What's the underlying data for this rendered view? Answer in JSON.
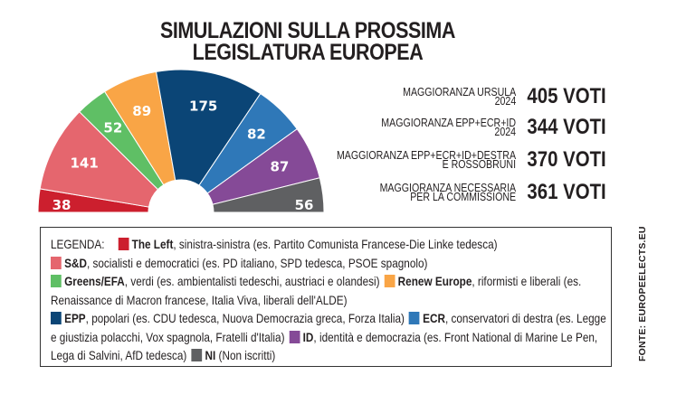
{
  "title_line1": "SIMULAZIONI SULLA PROSSIMA",
  "title_line2": "LEGISLATURA EUROPEA",
  "chart_data": {
    "type": "pie",
    "subtype": "hemicycle",
    "title": "SIMULAZIONI SULLA PROSSIMA LEGISLATURA EUROPEA",
    "categories": [
      "The Left",
      "S&D",
      "Greens/EFA",
      "Renew Europe",
      "EPP",
      "ECR",
      "ID",
      "NI"
    ],
    "values": [
      38,
      141,
      52,
      89,
      175,
      82,
      87,
      56
    ],
    "colors": [
      "#cc1f2e",
      "#e5666e",
      "#5fbf65",
      "#f9a546",
      "#0b4576",
      "#2f78b8",
      "#854a97",
      "#5f6062"
    ]
  },
  "majorities": [
    {
      "label1": "MAGGIORANZA URSULA",
      "label2": "2024",
      "value": "405 VOTI"
    },
    {
      "label1": "MAGGIORANZA EPP+ECR+ID",
      "label2": "2024",
      "value": "344 VOTI"
    },
    {
      "label1": "MAGGIORANZA EPP+ECR+ID+DESTRA",
      "label2": "E ROSSOBRUNI",
      "value": "370 VOTI"
    },
    {
      "label1": "MAGGIORANZA NECESSARIA",
      "label2": "PER LA COMMISSIONE",
      "value": "361 VOTI"
    }
  ],
  "legend": {
    "heading": "LEGENDA:",
    "items": [
      {
        "name": "The Left",
        "desc": ", sinistra-sinistra (es. Partito Comunista Francese-Die Linke tedesca)"
      },
      {
        "name": "S&D",
        "desc": ", socialisti e democratici (es. PD italiano, SPD tedesca, PSOE spagnolo)"
      },
      {
        "name": "Greens/EFA",
        "desc": ", verdi (es. ambientalisti tedeschi, austriaci e olandesi)"
      },
      {
        "name": "Renew Europe",
        "desc": ", riformisti e liberali (es. Renaissance di Macron francese, Italia Viva, liberali dell'ALDE)"
      },
      {
        "name": "EPP",
        "desc": ", popolari (es. CDU tedesca, Nuova Democrazia greca, Forza Italia)"
      },
      {
        "name": "ECR",
        "desc": ", conservatori di destra (es. Legge e giustizia polacchi, Vox spagnola, Fratelli d'Italia)"
      },
      {
        "name": "ID",
        "desc": ", identità e democrazia (es. Front National di Marine Le Pen, Lega di Salvini, AfD tedesca)"
      },
      {
        "name": "NI",
        "desc": " (Non iscritti)"
      }
    ]
  },
  "source": "FONTE: EUROPEELECTS.EU"
}
